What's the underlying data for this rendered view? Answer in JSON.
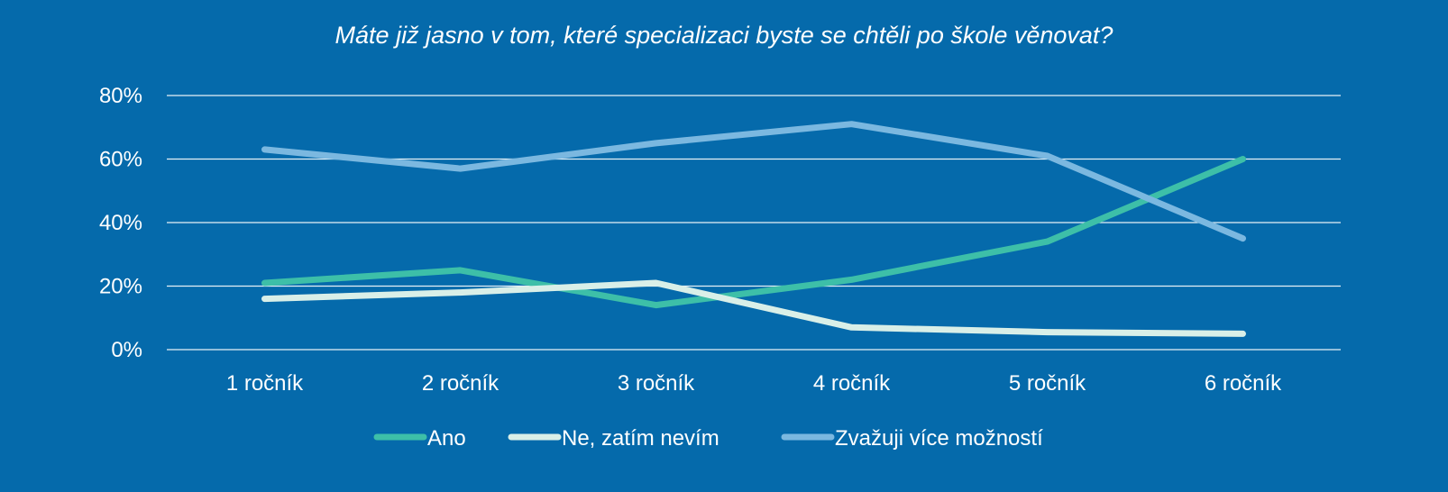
{
  "chart_data": {
    "type": "line",
    "title": "Máte již jasno v tom, které specializaci byste se chtěli po škole věnovat?",
    "categories": [
      "1 ročník",
      "2 ročník",
      "3 ročník",
      "4 ročník",
      "5 ročník",
      "6 ročník"
    ],
    "y_ticks": [
      "0%",
      "20%",
      "40%",
      "60%",
      "80%"
    ],
    "ylim": [
      0,
      80
    ],
    "grid": true,
    "legend_position": "bottom",
    "background_color": "#056aab",
    "series": [
      {
        "name": "Ano",
        "color": "#3dbfa8",
        "values": [
          21,
          25,
          14,
          22,
          34,
          60
        ]
      },
      {
        "name": "Ne, zatím nevím",
        "color": "#d9efe8",
        "values": [
          16,
          18,
          21,
          7,
          5.5,
          5
        ]
      },
      {
        "name": "Zvažuji více možností",
        "color": "#7bb8e0",
        "values": [
          63,
          57,
          65,
          71,
          61,
          35
        ]
      }
    ]
  }
}
